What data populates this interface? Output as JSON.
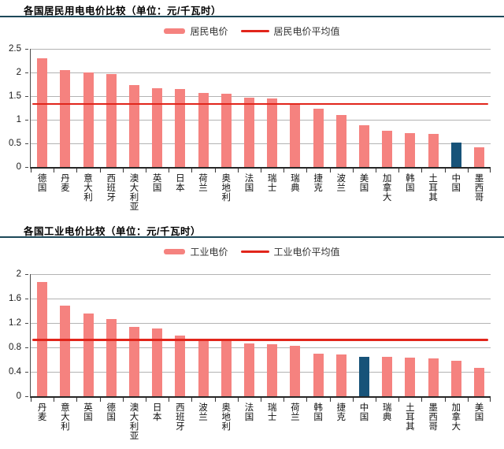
{
  "colors": {
    "background": "#ffffff",
    "title_rule": "#1c4859",
    "gridline": "#b3b3b3",
    "axis": "#262626"
  },
  "chart_data": [
    {
      "type": "bar",
      "title": "各国居民用电电价比较（单位：元/千瓦时）",
      "legend": [
        "居民电价",
        "居民电价平均值"
      ],
      "legend_position": "top-center",
      "categories": [
        "德国",
        "丹麦",
        "意大利",
        "西班牙",
        "澳大利亚",
        "英国",
        "日本",
        "荷兰",
        "奥地利",
        "法国",
        "瑞士",
        "瑞典",
        "捷克",
        "波兰",
        "美国",
        "加拿大",
        "韩国",
        "土耳其",
        "中国",
        "墨西哥"
      ],
      "values": [
        2.3,
        2.05,
        2.0,
        1.97,
        1.73,
        1.67,
        1.65,
        1.57,
        1.55,
        1.46,
        1.45,
        1.34,
        1.24,
        1.1,
        0.88,
        0.76,
        0.72,
        0.7,
        0.52,
        0.42
      ],
      "average_line": 1.33,
      "ylim": [
        0,
        2.5
      ],
      "yticks": [
        0,
        0.5,
        1,
        1.5,
        2,
        2.5
      ],
      "ytick_labels": [
        "0",
        "0.5",
        "1",
        "1.5",
        "2",
        "2.5"
      ],
      "grid": true,
      "bar_color": "#f5827f",
      "avg_line_color": "#e1251b",
      "highlight": {
        "category": "中国",
        "index": 18,
        "color": "#175379"
      }
    },
    {
      "type": "bar",
      "title": "各国工业电价比较（单位：元/千瓦时）",
      "legend": [
        "工业电价",
        "工业电价平均值"
      ],
      "legend_position": "top-center",
      "categories": [
        "丹麦",
        "意大利",
        "英国",
        "德国",
        "澳大利亚",
        "日本",
        "西班牙",
        "波兰",
        "奥地利",
        "法国",
        "瑞士",
        "荷兰",
        "韩国",
        "捷克",
        "中国",
        "瑞典",
        "土耳其",
        "墨西哥",
        "加拿大",
        "美国"
      ],
      "values": [
        1.87,
        1.48,
        1.35,
        1.26,
        1.13,
        1.11,
        1.0,
        0.93,
        0.92,
        0.86,
        0.85,
        0.82,
        0.7,
        0.68,
        0.65,
        0.64,
        0.63,
        0.62,
        0.58,
        0.47
      ],
      "average_line": 0.92,
      "ylim": [
        0,
        2
      ],
      "yticks": [
        0,
        0.4,
        0.8,
        1.2,
        1.6,
        2
      ],
      "ytick_labels": [
        "0",
        "0.4",
        "0.8",
        "1.2",
        "1.6",
        "2"
      ],
      "grid": true,
      "bar_color": "#f5827f",
      "avg_line_color": "#e1251b",
      "highlight": {
        "category": "中国",
        "index": 14,
        "color": "#175379"
      }
    }
  ]
}
